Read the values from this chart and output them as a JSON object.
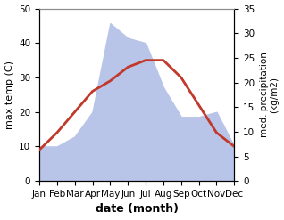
{
  "months": [
    "Jan",
    "Feb",
    "Mar",
    "Apr",
    "May",
    "Jun",
    "Jul",
    "Aug",
    "Sep",
    "Oct",
    "Nov",
    "Dec"
  ],
  "month_x": [
    1,
    2,
    3,
    4,
    5,
    6,
    7,
    8,
    9,
    10,
    11,
    12
  ],
  "temperature": [
    9,
    14,
    20,
    26,
    29,
    33,
    35,
    35,
    30,
    22,
    14,
    10
  ],
  "precipitation": [
    7,
    7,
    9,
    14,
    32,
    29,
    28,
    19,
    13,
    13,
    14,
    7
  ],
  "temp_color": "#c0392b",
  "precip_fill_color": "#b8c4e8",
  "left_label": "max temp (C)",
  "right_label": "med. precipitation\n(kg/m2)",
  "xlabel": "date (month)",
  "left_ylim": [
    0,
    50
  ],
  "right_ylim": [
    0,
    35
  ],
  "left_yticks": [
    0,
    10,
    20,
    30,
    40,
    50
  ],
  "right_yticks": [
    0,
    5,
    10,
    15,
    20,
    25,
    30,
    35
  ],
  "bg_color": "#ffffff",
  "temp_linewidth": 2.0
}
